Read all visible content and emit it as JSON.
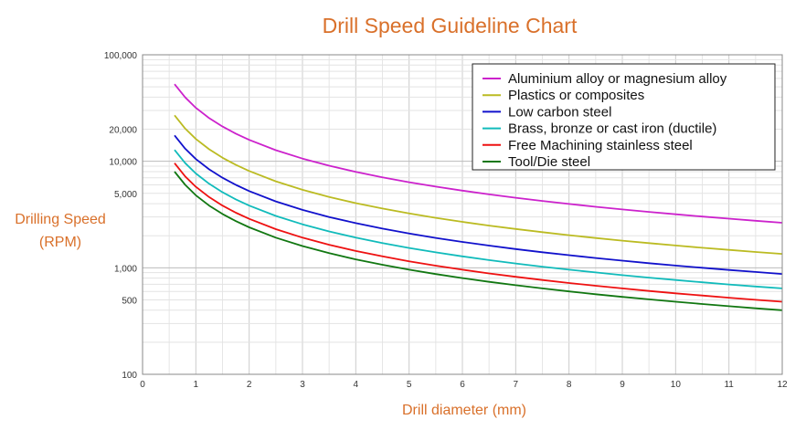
{
  "chart_data": {
    "type": "line",
    "title": "Drill Speed Guideline Chart",
    "xlabel": "Drill diameter (mm)",
    "ylabel_lines": [
      "Drilling Speed",
      "(RPM)"
    ],
    "x_scale": "linear",
    "y_scale": "log",
    "xlim": [
      0,
      12
    ],
    "ylim": [
      100,
      100000
    ],
    "x_ticks": [
      0,
      1,
      2,
      3,
      4,
      5,
      6,
      7,
      8,
      9,
      10,
      11,
      12
    ],
    "x_tick_labels": [
      "0",
      "1",
      "2",
      "3",
      "4",
      "5",
      "6",
      "7",
      "8",
      "9",
      "10",
      "11",
      "12"
    ],
    "y_ticks": [
      100,
      500,
      1000,
      5000,
      10000,
      20000,
      100000
    ],
    "y_tick_labels": [
      "100",
      "500",
      "1,000",
      "5,000",
      "10,000",
      "20,000",
      "100,000"
    ],
    "grid": true,
    "legend_position": "top-right",
    "x": [
      0.6,
      0.8,
      1,
      1.25,
      1.5,
      1.75,
      2,
      2.5,
      3,
      3.5,
      4,
      4.5,
      5,
      5.5,
      6,
      6.5,
      7,
      7.5,
      8,
      8.5,
      9,
      9.5,
      10,
      10.5,
      11,
      11.5,
      12
    ],
    "series": [
      {
        "name": "Aluminium alloy or magnesium alloy",
        "color": "#cc22cc",
        "values": [
          53000,
          39750,
          31800,
          25440,
          21200,
          18171,
          15900,
          12720,
          10600,
          9086,
          7950,
          7067,
          6360,
          5782,
          5300,
          4892,
          4543,
          4240,
          3975,
          3741,
          3533,
          3347,
          3180,
          3029,
          2891,
          2765,
          2650
        ]
      },
      {
        "name": "Plastics or composites",
        "color": "#bbbb22",
        "values": [
          27000,
          20250,
          16200,
          12960,
          10800,
          9257,
          8100,
          6480,
          5400,
          4629,
          4050,
          3600,
          3240,
          2945,
          2700,
          2492,
          2314,
          2160,
          2025,
          1906,
          1800,
          1705,
          1620,
          1543,
          1473,
          1409,
          1350
        ]
      },
      {
        "name": "Low carbon steel",
        "color": "#1111cc",
        "values": [
          17500,
          13125,
          10500,
          8400,
          7000,
          6000,
          5250,
          4200,
          3500,
          3000,
          2625,
          2333,
          2100,
          1909,
          1750,
          1615,
          1500,
          1400,
          1313,
          1235,
          1167,
          1105,
          1050,
          1000,
          955,
          913,
          875
        ]
      },
      {
        "name": "Brass, bronze or cast iron (ductile)",
        "color": "#11bbbb",
        "values": [
          12800,
          9600,
          7680,
          6144,
          5120,
          4389,
          3840,
          3072,
          2560,
          2194,
          1920,
          1707,
          1536,
          1396,
          1280,
          1182,
          1097,
          1024,
          960,
          904,
          853,
          808,
          768,
          731,
          698,
          668,
          640
        ]
      },
      {
        "name": "Free Machining stainless steel",
        "color": "#ee1111",
        "values": [
          9600,
          7200,
          5760,
          4608,
          3840,
          3291,
          2880,
          2304,
          1920,
          1646,
          1440,
          1280,
          1152,
          1047,
          960,
          886,
          823,
          768,
          720,
          678,
          640,
          606,
          576,
          549,
          524,
          501,
          480
        ]
      },
      {
        "name": "Tool/Die steel",
        "color": "#117711",
        "values": [
          8000,
          6000,
          4800,
          3840,
          3200,
          2743,
          2400,
          1920,
          1600,
          1371,
          1200,
          1067,
          960,
          873,
          800,
          738,
          686,
          640,
          600,
          565,
          533,
          505,
          480,
          457,
          436,
          417,
          400
        ]
      }
    ]
  }
}
